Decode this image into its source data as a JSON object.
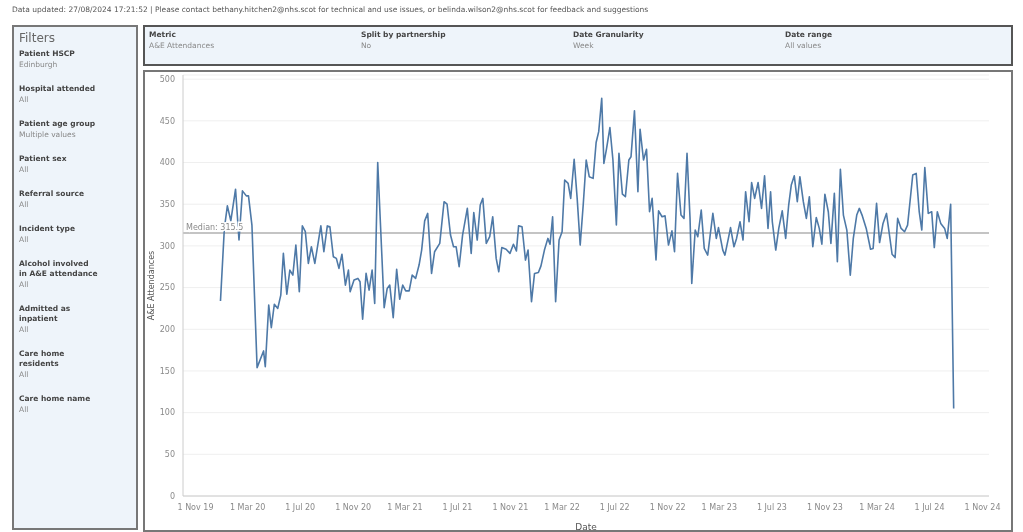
{
  "chart_data": [
    {
      "type": "other",
      "title": "Filters",
      "annotations": [
        "Patient HSCP",
        "Edinburgh",
        "Hospital attended",
        "All",
        "Patient age group",
        "Multiple values",
        "Patient sex",
        "All",
        "Referral source",
        "All",
        "Incident type",
        "All",
        "Alcohol involved in A&E attendance",
        "All",
        "Admitted as inpatient",
        "All",
        "Care home residents",
        "All",
        "Care home name",
        "All"
      ]
    },
    {
      "type": "other",
      "annotations": [
        "Metric",
        "A&E Attendances",
        "Split by partnership",
        "No",
        "Date Granularity",
        "Week",
        "Date range",
        "All values"
      ]
    },
    {
      "type": "line",
      "xlabel": "Date",
      "ylabel": "A&E Attendances",
      "annotations": [
        "Data updated: 27/08/2024 17:21:52  |  Please contact bethany.hitchen2@nhs.scot for technical and use issues, or belinda.wilson2@nhs.scot for feedback and suggestions"
      ],
      "xlim": [
        "2019-10-03",
        "2024-11-16"
      ],
      "xticks": [
        {
          "value": "2019-11-01",
          "label": "1 Nov 19"
        },
        {
          "value": "2020-03-01",
          "label": "1 Mar 20"
        },
        {
          "value": "2020-07-01",
          "label": "1 Jul 20"
        },
        {
          "value": "2020-11-01",
          "label": "1 Nov 20"
        },
        {
          "value": "2021-03-01",
          "label": "1 Mar 21"
        },
        {
          "value": "2021-07-01",
          "label": "1 Jul 21"
        },
        {
          "value": "2021-11-01",
          "label": "1 Nov 21"
        },
        {
          "value": "2022-03-01",
          "label": "1 Mar 22"
        },
        {
          "value": "2022-07-01",
          "label": "1 Jul 22"
        },
        {
          "value": "2022-11-01",
          "label": "1 Nov 22"
        },
        {
          "value": "2023-03-01",
          "label": "1 Mar 23"
        },
        {
          "value": "2023-07-01",
          "label": "1 Jul 23"
        },
        {
          "value": "2023-11-01",
          "label": "1 Nov 23"
        },
        {
          "value": "2024-03-01",
          "label": "1 Mar 24"
        },
        {
          "value": "2024-07-01",
          "label": "1 Jul 24"
        },
        {
          "value": "2024-11-01",
          "label": "1 Nov 24"
        }
      ],
      "ylim": [
        0,
        505
      ],
      "yticks": [
        0,
        50,
        100,
        150,
        200,
        250,
        300,
        350,
        400,
        450,
        500
      ],
      "grid": "y",
      "marker": "none",
      "line_style": "solid",
      "ref_lines": [
        {
          "axis": "y",
          "value": 315.5,
          "label": "Median: 315.5",
          "color": "#b0b0b0"
        }
      ],
      "series": [
        {
          "color": "#4e79a7",
          "x": [
            "2019-12-29",
            "2020-01-07",
            "2020-01-14",
            "2020-01-22",
            "2020-02-02",
            "2020-02-10",
            "2020-02-18",
            "2020-02-27",
            "2020-03-03",
            "2020-03-11",
            "2020-03-23",
            "2020-04-07",
            "2020-04-11",
            "2020-04-19",
            "2020-04-25",
            "2020-05-02",
            "2020-05-10",
            "2020-05-17",
            "2020-05-23",
            "2020-05-31",
            "2020-06-07",
            "2020-06-14",
            "2020-06-21",
            "2020-06-29",
            "2020-07-06",
            "2020-07-13",
            "2020-07-20",
            "2020-07-27",
            "2020-08-04",
            "2020-08-18",
            "2020-08-25",
            "2020-09-02",
            "2020-09-08",
            "2020-09-16",
            "2020-09-23",
            "2020-09-29",
            "2020-10-06",
            "2020-10-14",
            "2020-10-21",
            "2020-10-25",
            "2020-11-03",
            "2020-11-12",
            "2020-11-17",
            "2020-11-23",
            "2020-12-01",
            "2020-12-08",
            "2020-12-15",
            "2020-12-21",
            "2020-12-28",
            "2021-01-12",
            "2021-01-19",
            "2021-01-25",
            "2021-02-02",
            "2021-02-10",
            "2021-02-17",
            "2021-02-24",
            "2021-03-03",
            "2021-03-11",
            "2021-03-18",
            "2021-03-26",
            "2021-04-03",
            "2021-04-09",
            "2021-04-16",
            "2021-04-23",
            "2021-05-02",
            "2021-05-09",
            "2021-05-21",
            "2021-05-31",
            "2021-06-07",
            "2021-06-15",
            "2021-06-22",
            "2021-06-28",
            "2021-07-05",
            "2021-07-13",
            "2021-07-24",
            "2021-08-02",
            "2021-08-08",
            "2021-08-16",
            "2021-08-23",
            "2021-08-29",
            "2021-09-06",
            "2021-09-14",
            "2021-09-21",
            "2021-09-29",
            "2021-10-05",
            "2021-10-12",
            "2021-10-22",
            "2021-10-31",
            "2021-11-08",
            "2021-11-15",
            "2021-11-20",
            "2021-11-28",
            "2021-12-06",
            "2021-12-12",
            "2021-12-20",
            "2021-12-27",
            "2022-01-05",
            "2022-01-11",
            "2022-01-19",
            "2022-01-27",
            "2022-02-01",
            "2022-02-07",
            "2022-02-14",
            "2022-02-22",
            "2022-03-01",
            "2022-03-07",
            "2022-03-15",
            "2022-03-21",
            "2022-03-29",
            "2022-04-05",
            "2022-04-12",
            "2022-04-19",
            "2022-04-26",
            "2022-05-03",
            "2022-05-12",
            "2022-05-19",
            "2022-05-25",
            "2022-06-01",
            "2022-06-06",
            "2022-06-12",
            "2022-06-20",
            "2022-06-27",
            "2022-07-05",
            "2022-07-11",
            "2022-07-19",
            "2022-07-26",
            "2022-08-03",
            "2022-08-08",
            "2022-08-16",
            "2022-08-24",
            "2022-08-29",
            "2022-09-06",
            "2022-09-13",
            "2022-09-20",
            "2022-09-26",
            "2022-10-05",
            "2022-10-11",
            "2022-10-19",
            "2022-10-26",
            "2022-11-03",
            "2022-11-11",
            "2022-11-17",
            "2022-11-24",
            "2022-12-02",
            "2022-12-09",
            "2022-12-16",
            "2022-12-23",
            "2022-12-27",
            "2023-01-04",
            "2023-01-10",
            "2023-01-18",
            "2023-01-25",
            "2023-02-02",
            "2023-02-14",
            "2023-02-22",
            "2023-02-27",
            "2023-03-09",
            "2023-03-14",
            "2023-03-22",
            "2023-03-27",
            "2023-04-04",
            "2023-04-10",
            "2023-04-18",
            "2023-04-25",
            "2023-05-01",
            "2023-05-09",
            "2023-05-15",
            "2023-05-22",
            "2023-05-30",
            "2023-06-07",
            "2023-06-14",
            "2023-06-22",
            "2023-06-28",
            "2023-07-02",
            "2023-07-10",
            "2023-07-17",
            "2023-07-25",
            "2023-08-02",
            "2023-08-09",
            "2023-08-15",
            "2023-08-22",
            "2023-08-29",
            "2023-09-04",
            "2023-09-12",
            "2023-09-19",
            "2023-09-26",
            "2023-10-04",
            "2023-10-12",
            "2023-10-19",
            "2023-10-25",
            "2023-11-01",
            "2023-11-09",
            "2023-11-15",
            "2023-11-23",
            "2023-11-30",
            "2023-12-07",
            "2023-12-14",
            "2023-12-22",
            "2023-12-30",
            "2024-01-06",
            "2024-01-14",
            "2024-01-20",
            "2024-01-27",
            "2024-02-05",
            "2024-02-15",
            "2024-02-21",
            "2024-02-29",
            "2024-03-07",
            "2024-03-15",
            "2024-03-23",
            "2024-03-30",
            "2024-04-05",
            "2024-04-12",
            "2024-04-18",
            "2024-04-26",
            "2024-05-04",
            "2024-05-11",
            "2024-05-23",
            "2024-05-31",
            "2024-06-07",
            "2024-06-13",
            "2024-06-20",
            "2024-06-28",
            "2024-07-06",
            "2024-07-12",
            "2024-07-19",
            "2024-07-27",
            "2024-08-05",
            "2024-08-11",
            "2024-08-19",
            "2024-08-26"
          ],
          "values": [
            234,
            321,
            348,
            330,
            368,
            307,
            366,
            360,
            360,
            325,
            154,
            174,
            155,
            229,
            202,
            230,
            225,
            241,
            291,
            242,
            271,
            265,
            301,
            245,
            324,
            317,
            279,
            299,
            279,
            324,
            293,
            324,
            323,
            287,
            285,
            273,
            290,
            253,
            271,
            245,
            259,
            261,
            257,
            212,
            267,
            247,
            271,
            231,
            400,
            226,
            249,
            253,
            214,
            272,
            236,
            253,
            246,
            246,
            265,
            261,
            277,
            295,
            330,
            339,
            267,
            293,
            303,
            353,
            350,
            313,
            299,
            299,
            275,
            313,
            345,
            291,
            340,
            307,
            349,
            357,
            303,
            311,
            335,
            285,
            269,
            298,
            296,
            291,
            302,
            294,
            324,
            323,
            283,
            295,
            233,
            267,
            268,
            276,
            295,
            309,
            302,
            335,
            233,
            307,
            317,
            379,
            375,
            357,
            404,
            357,
            301,
            349,
            403,
            383,
            381,
            424,
            437,
            477,
            399,
            416,
            442,
            403,
            325,
            411,
            362,
            359,
            403,
            407,
            462,
            365,
            440,
            403,
            416,
            341,
            357,
            283,
            342,
            335,
            336,
            301,
            318,
            293,
            387,
            337,
            333,
            411,
            333,
            255,
            319,
            311,
            343,
            297,
            289,
            339,
            309,
            322,
            295,
            289,
            309,
            322,
            299,
            309,
            329,
            307,
            365,
            329,
            376,
            357,
            376,
            345,
            384,
            321,
            365,
            329,
            295,
            321,
            342,
            309,
            349,
            373,
            384,
            353,
            383,
            353,
            333,
            359,
            299,
            334,
            321,
            302,
            362,
            341,
            303,
            363,
            281,
            392,
            337,
            319,
            265,
            309,
            337,
            345,
            336,
            321,
            296,
            297,
            351,
            304,
            327,
            339,
            313,
            290,
            286,
            333,
            321,
            317,
            325,
            385,
            387,
            341,
            319,
            394,
            339,
            341,
            298,
            341,
            327,
            321,
            309,
            350,
            105
          ]
        }
      ]
    }
  ]
}
